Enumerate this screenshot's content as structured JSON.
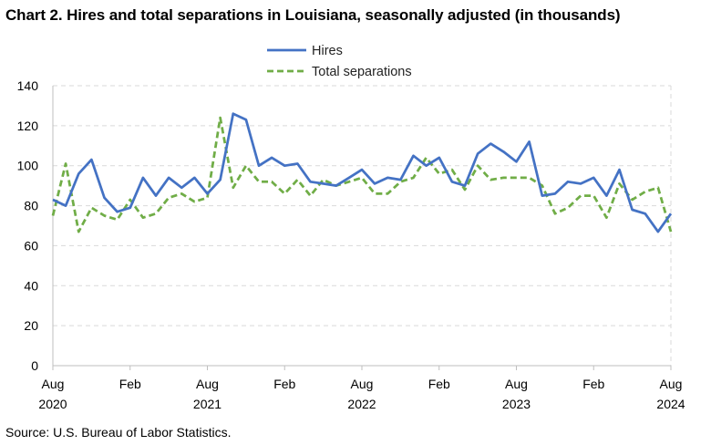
{
  "title": "Chart 2. Hires and total separations in Louisiana, seasonally adjusted (in thousands)",
  "source": "Source: U.S. Bureau of Labor Statistics.",
  "chart_data": {
    "type": "line",
    "title": "Chart 2. Hires and total separations in Louisiana, seasonally adjusted (in thousands)",
    "xlabel": "",
    "ylabel": "",
    "ylim": [
      0,
      140
    ],
    "yticks": [
      "0",
      "20",
      "40",
      "60",
      "80",
      "100",
      "120",
      "140"
    ],
    "grid": true,
    "legend_position": "top-center",
    "xtick_labels": [
      {
        "month": "Aug",
        "year": "2020"
      },
      {
        "month": "Feb",
        "year": ""
      },
      {
        "month": "Aug",
        "year": "2021"
      },
      {
        "month": "Feb",
        "year": ""
      },
      {
        "month": "Aug",
        "year": "2022"
      },
      {
        "month": "Feb",
        "year": ""
      },
      {
        "month": "Aug",
        "year": "2023"
      },
      {
        "month": "Feb",
        "year": ""
      },
      {
        "month": "Aug",
        "year": "2024"
      }
    ],
    "x": [
      "2020-08",
      "2020-09",
      "2020-10",
      "2020-11",
      "2020-12",
      "2021-01",
      "2021-02",
      "2021-03",
      "2021-04",
      "2021-05",
      "2021-06",
      "2021-07",
      "2021-08",
      "2021-09",
      "2021-10",
      "2021-11",
      "2021-12",
      "2022-01",
      "2022-02",
      "2022-03",
      "2022-04",
      "2022-05",
      "2022-06",
      "2022-07",
      "2022-08",
      "2022-09",
      "2022-10",
      "2022-11",
      "2022-12",
      "2023-01",
      "2023-02",
      "2023-03",
      "2023-04",
      "2023-05",
      "2023-06",
      "2023-07",
      "2023-08",
      "2023-09",
      "2023-10",
      "2023-11",
      "2023-12",
      "2024-01",
      "2024-02",
      "2024-03",
      "2024-04",
      "2024-05",
      "2024-06",
      "2024-07",
      "2024-08"
    ],
    "series": [
      {
        "name": "Hires",
        "color": "#4472C4",
        "dash": "solid",
        "values": [
          83,
          80,
          96,
          103,
          84,
          77,
          79,
          94,
          85,
          94,
          89,
          94,
          86,
          93,
          126,
          123,
          100,
          104,
          100,
          101,
          92,
          91,
          90,
          94,
          98,
          91,
          94,
          93,
          105,
          100,
          104,
          92,
          90,
          106,
          111,
          107,
          102,
          112,
          85,
          86,
          92,
          91,
          94,
          85,
          98,
          78,
          76,
          67,
          76
        ]
      },
      {
        "name": "Total separations",
        "color": "#70AD47",
        "dash": "dashed",
        "values": [
          75,
          101,
          67,
          79,
          75,
          73,
          83,
          74,
          76,
          84,
          86,
          82,
          84,
          124,
          89,
          100,
          92,
          92,
          86,
          93,
          85,
          93,
          90,
          92,
          94,
          86,
          86,
          92,
          94,
          104,
          96,
          98,
          88,
          100,
          93,
          94,
          94,
          94,
          90,
          76,
          79,
          85,
          85,
          74,
          91,
          83,
          87,
          89,
          67
        ]
      }
    ]
  }
}
